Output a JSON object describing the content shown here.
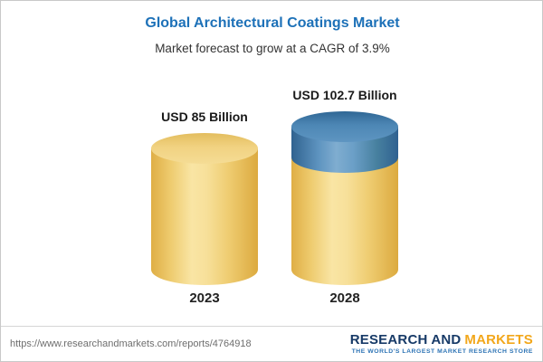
{
  "chart_data": {
    "type": "bar",
    "bar_style": "3d-cylinder",
    "title": "Global Architectural Coatings Market",
    "subtitle": "Market forecast to grow at a CAGR of 3.9%",
    "categories": [
      "2023",
      "2028"
    ],
    "values": [
      85,
      102.7
    ],
    "unit": "USD Billion",
    "value_labels": [
      "USD 85 Billion",
      "USD 102.7 Billion"
    ],
    "cagr": "3.9%",
    "growth_segment": {
      "category": "2028",
      "from": 85,
      "to": 102.7
    },
    "legend": "none",
    "grid": false,
    "colors": {
      "base_segment": "#f0cf74",
      "growth_segment": "#4d87b5",
      "title_text": "#1d71b8",
      "label_text": "#1a1a1a"
    }
  },
  "footer": {
    "url": "https://www.researchandmarkets.com/reports/4764918",
    "logo": {
      "name_blue": "RESEARCH AND",
      "name_gold": "MARKETS",
      "tagline": "THE WORLD'S LARGEST MARKET RESEARCH STORE"
    }
  }
}
